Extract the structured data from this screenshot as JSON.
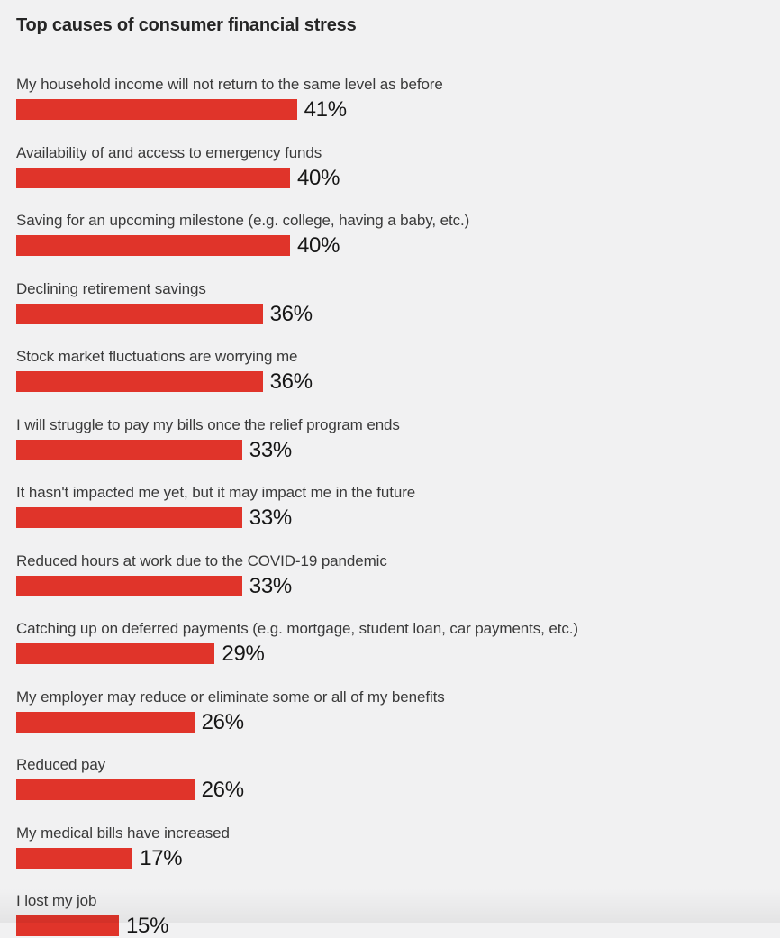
{
  "title": "Top causes of consumer financial stress",
  "colors": {
    "background": "#f1f1f2",
    "bar": "#e0342a",
    "title_text": "#262626",
    "label_text": "#3a3a3a",
    "value_text": "#161616"
  },
  "chart_data": {
    "type": "bar",
    "orientation": "horizontal",
    "title": "Top causes of consumer financial stress",
    "categories": [
      "My household income will not return to the same level as before",
      "Availability of and access to emergency funds",
      "Saving for an upcoming milestone (e.g. college, having a baby, etc.)",
      "Declining retirement savings",
      "Stock market fluctuations are worrying me",
      "I will struggle to pay my bills once the relief program ends",
      "It hasn't impacted me yet, but it may impact me in the future",
      "Reduced hours at work due to the COVID-19 pandemic",
      "Catching up on deferred payments (e.g. mortgage, student loan, car payments, etc.)",
      "My employer may reduce or eliminate some or all of my benefits",
      "Reduced pay",
      "My medical bills have increased",
      "I lost my job"
    ],
    "values": [
      41,
      40,
      40,
      36,
      36,
      33,
      33,
      33,
      29,
      26,
      26,
      17,
      15
    ],
    "value_suffix": "%",
    "value_labels_shown": true,
    "xlabel": "",
    "ylabel": "",
    "xlim": [
      0,
      100
    ],
    "grid": false,
    "legend": "none",
    "bar_color": "#e0342a"
  }
}
